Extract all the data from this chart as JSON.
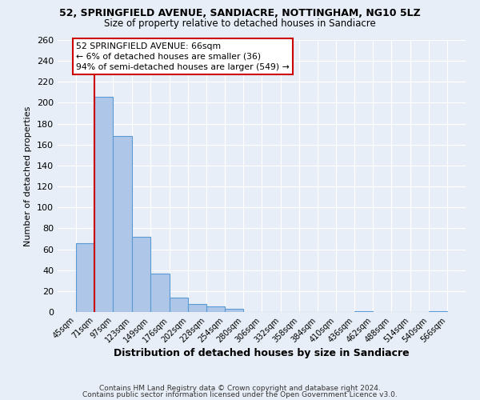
{
  "title_line1": "52, SPRINGFIELD AVENUE, SANDIACRE, NOTTINGHAM, NG10 5LZ",
  "title_line2": "Size of property relative to detached houses in Sandiacre",
  "xlabel": "Distribution of detached houses by size in Sandiacre",
  "ylabel": "Number of detached properties",
  "bar_edges": [
    45,
    71,
    97,
    123,
    149,
    176,
    202,
    228,
    254,
    280,
    306,
    332,
    358,
    384,
    410,
    436,
    462,
    488,
    514,
    540,
    566
  ],
  "bar_heights": [
    66,
    206,
    168,
    72,
    37,
    14,
    8,
    5,
    3,
    0,
    0,
    0,
    0,
    0,
    0,
    1,
    0,
    0,
    0,
    1
  ],
  "bar_color": "#aec6e8",
  "bar_edge_color": "#5b9bd5",
  "property_line_x": 71,
  "ylim": [
    0,
    260
  ],
  "yticks": [
    0,
    20,
    40,
    60,
    80,
    100,
    120,
    140,
    160,
    180,
    200,
    220,
    240,
    260
  ],
  "annotation_box_text": "52 SPRINGFIELD AVENUE: 66sqm\n← 6% of detached houses are smaller (36)\n94% of semi-detached houses are larger (549) →",
  "annotation_box_color": "#ffffff",
  "annotation_box_edge_color": "#cc0000",
  "annotation_line_color": "#cc0000",
  "bg_color": "#e8eef7",
  "plot_bg_color": "#e8eef7",
  "footer_line1": "Contains HM Land Registry data © Crown copyright and database right 2024.",
  "footer_line2": "Contains public sector information licensed under the Open Government Licence v3.0."
}
